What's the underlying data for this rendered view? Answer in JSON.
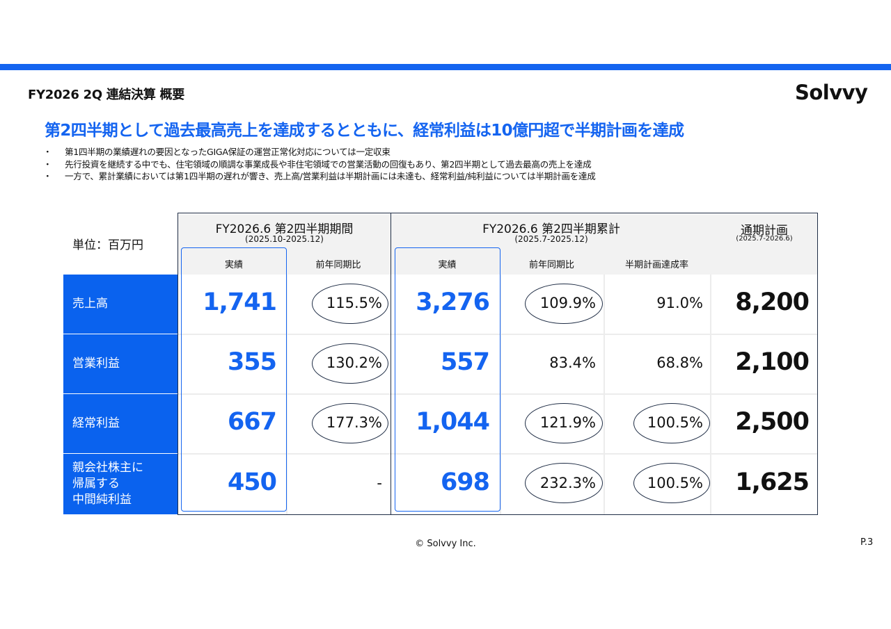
{
  "header": {
    "page_title": "FY2026 2Q 連結決算 概要",
    "logo_text": "Solvvy",
    "brand_color": "#1464f0"
  },
  "headline": "第2四半期として過去最高売上を達成するとともに、経常利益は10億円超で半期計画を達成",
  "bullets": [
    "第1四半期の業績遅れの要因となったGIGA保証の運営正常化対応については一定収束",
    "先行投資を継続する中でも、住宅領域の順調な事業成長や非住宅領域での営業活動の回復もあり、第2四半期として過去最高の売上を達成",
    "一方で、累計業績においては第1四半期の遅れが響き、売上高/営業利益は半期計画には未達も、経常利益/純利益については半期計画を達成"
  ],
  "table": {
    "unit_label": "単位：百万円",
    "group_quarter": {
      "title": "FY2026.6 第2四半期期間",
      "period": "(2025.10-2025.12)"
    },
    "group_cumulative": {
      "title": "FY2026.6 第2四半期累計",
      "period": "(2025.7-2025.12)"
    },
    "group_plan": {
      "title": "通期計画",
      "period": "(2025.7-2026.6)"
    },
    "columns": {
      "q_actual": "実績",
      "q_yoy": "前年同期比",
      "c_actual": "実績",
      "c_yoy": "前年同期比",
      "c_achieve": "半期計画達成率"
    },
    "rows": [
      {
        "label": "売上高",
        "q_actual": "1,741",
        "q_yoy": "115.5%",
        "c_actual": "3,276",
        "c_yoy": "109.9%",
        "c_achieve": "91.0%",
        "plan": "8,200"
      },
      {
        "label": "営業利益",
        "q_actual": "355",
        "q_yoy": "130.2%",
        "c_actual": "557",
        "c_yoy": "83.4%",
        "c_achieve": "68.8%",
        "plan": "2,100"
      },
      {
        "label": "経常利益",
        "q_actual": "667",
        "q_yoy": "177.3%",
        "c_actual": "1,044",
        "c_yoy": "121.9%",
        "c_achieve": "100.5%",
        "plan": "2,500"
      },
      {
        "label": "親会社株主に\n帰属する\n中間純利益",
        "q_actual": "450",
        "q_yoy": "-",
        "c_actual": "698",
        "c_yoy": "232.3%",
        "c_achieve": "100.5%",
        "plan": "1,625"
      }
    ]
  },
  "footer": {
    "copyright": "© Solvvy Inc.",
    "page": "P.3"
  }
}
